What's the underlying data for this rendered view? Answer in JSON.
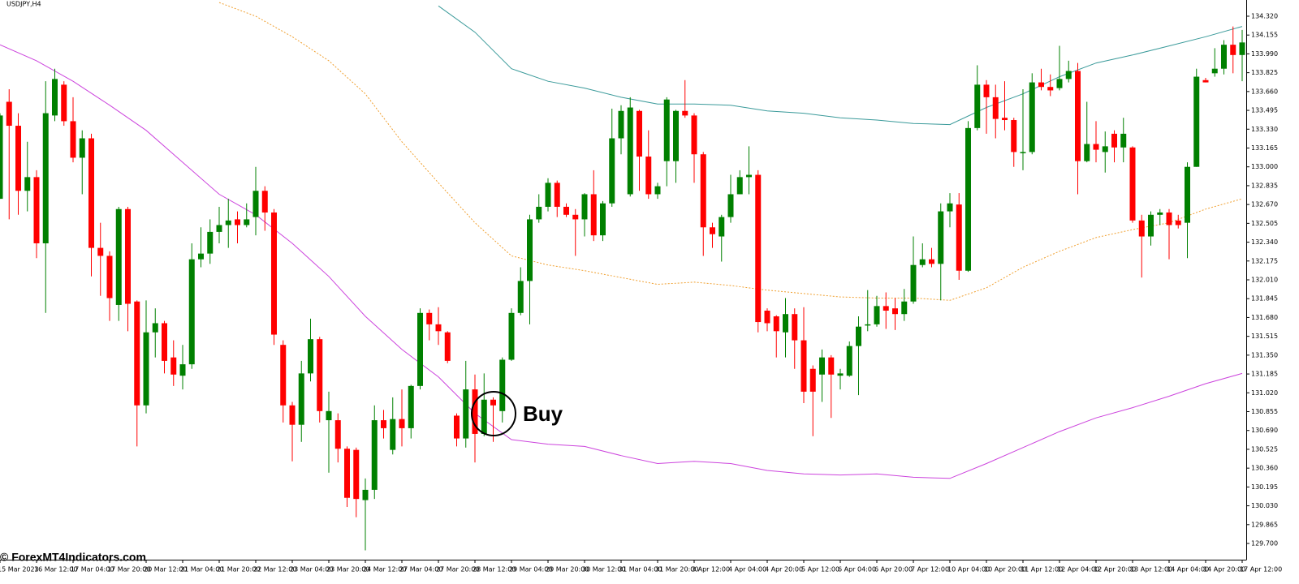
{
  "chart_data": {
    "type": "candlestick",
    "title": "USDJPY,H4",
    "watermark": "© ForexMT4Indicators.com",
    "annotation": "Buy",
    "up_color": "#008000",
    "down_color": "#ff0000",
    "ylim": [
      129.558,
      134.462
    ],
    "yticks": [
      {
        "value": 134.32,
        "label": "134.320"
      },
      134.155,
      {
        "value": 133.99,
        "label": "133.990"
      },
      133.825,
      {
        "value": 133.66,
        "label": "133.660"
      },
      133.495,
      {
        "value": 133.33,
        "label": "133.330"
      },
      133.165,
      {
        "value": 133.0,
        "label": "133.000"
      },
      132.835,
      {
        "value": 132.67,
        "label": "132.670"
      },
      132.505,
      {
        "value": 132.34,
        "label": "132.340"
      },
      132.175,
      {
        "value": 132.01,
        "label": "132.010"
      },
      131.845,
      {
        "value": 131.68,
        "label": "131.680"
      },
      131.515,
      {
        "value": 131.35,
        "label": "131.350"
      },
      131.185,
      {
        "value": 131.02,
        "label": "131.020"
      },
      130.855,
      {
        "value": 130.69,
        "label": "130.690"
      },
      130.525,
      {
        "value": 130.36,
        "label": "130.360"
      },
      130.195,
      {
        "value": 130.03,
        "label": "130.030"
      },
      129.865,
      {
        "value": 129.7,
        "label": "129.700"
      }
    ],
    "xticks": [
      "15 Mar 2023",
      "16 Mar 12:00",
      "17 Mar 04:00",
      "17 Mar 20:00",
      "20 Mar 12:00",
      "21 Mar 04:00",
      "21 Mar 20:00",
      "22 Mar 12:00",
      "23 Mar 04:00",
      "23 Mar 20:00",
      "24 Mar 12:00",
      "27 Mar 04:00",
      "27 Mar 20:00",
      "28 Mar 12:00",
      "29 Mar 04:00",
      "29 Mar 20:00",
      "30 Mar 12:00",
      "31 Mar 04:00",
      "31 Mar 20:00",
      "3 Apr 12:00",
      "4 Apr 04:00",
      "4 Apr 20:00",
      "5 Apr 12:00",
      "6 Apr 04:00",
      "6 Apr 20:00",
      "7 Apr 12:00",
      "10 Apr 04:00",
      "10 Apr 20:00",
      "11 Apr 12:00",
      "12 Apr 04:00",
      "12 Apr 20:00",
      "13 Apr 12:00",
      "14 Apr 04:00",
      "14 Apr 20:00",
      "17 Apr 12:00"
    ],
    "open": [
      132.72,
      133.57,
      133.36,
      132.79,
      132.91,
      132.33,
      133.45,
      133.72,
      133.4,
      133.08,
      133.25,
      132.29,
      132.22,
      131.79,
      132.63,
      131.82,
      130.91,
      131.55,
      131.63,
      131.33,
      131.17,
      131.27,
      132.19,
      132.24,
      132.43,
      132.49,
      132.54,
      132.49,
      132.56,
      132.79,
      132.6,
      131.44,
      130.91,
      130.74,
      131.19,
      131.49,
      130.78,
      130.78,
      130.53,
      130.52,
      130.08,
      130.17,
      130.78,
      130.52,
      130.79,
      130.71,
      131.08,
      131.72,
      131.62,
      131.55,
      130.82,
      130.62,
      131.05,
      130.66,
      130.96,
      130.86,
      131.31,
      131.72,
      132.0,
      132.54,
      132.65,
      132.86,
      132.65,
      132.58,
      132.54,
      132.76,
      132.4,
      132.68,
      133.25,
      132.76,
      133.49,
      133.09,
      132.76,
      133.05,
      133.05,
      133.49,
      133.45,
      133.11,
      132.47,
      132.39,
      132.56,
      132.76,
      132.91,
      132.93,
      131.74,
      131.69,
      131.55,
      131.71,
      131.48,
      131.23,
      131.18,
      131.33,
      131.17,
      131.17,
      131.43,
      131.61,
      131.62,
      131.78,
      131.76,
      131.71,
      131.82,
      132.14,
      132.19,
      132.15,
      132.61,
      132.67,
      132.09,
      133.34,
      133.72,
      133.61,
      133.43,
      133.41,
      133.12,
      133.13,
      133.74,
      133.7,
      133.69,
      133.77,
      133.84,
      133.05,
      133.2,
      133.13,
      133.29,
      133.17,
      133.17,
      132.53,
      132.39,
      132.58,
      132.6,
      132.53,
      132.51,
      133.0,
      133.76,
      133.82,
      133.86,
      134.07,
      133.98
    ],
    "high": [
      133.47,
      133.68,
      133.47,
      133.22,
      132.97,
      133.75,
      133.86,
      133.75,
      133.61,
      133.32,
      133.29,
      132.51,
      132.26,
      132.65,
      132.65,
      131.83,
      131.83,
      131.76,
      131.65,
      131.48,
      131.44,
      132.33,
      132.47,
      132.54,
      132.65,
      132.72,
      132.61,
      132.68,
      133.0,
      132.83,
      132.63,
      131.48,
      130.94,
      131.3,
      131.67,
      131.51,
      131.03,
      130.84,
      130.55,
      130.54,
      130.27,
      130.91,
      130.87,
      130.98,
      131.05,
      131.09,
      131.76,
      131.75,
      131.77,
      131.56,
      130.84,
      131.3,
      131.18,
      131.19,
      130.98,
      131.33,
      131.76,
      132.12,
      132.58,
      132.76,
      132.9,
      132.88,
      132.68,
      132.63,
      132.77,
      132.97,
      132.7,
      133.51,
      133.54,
      133.61,
      133.5,
      133.32,
      132.86,
      133.61,
      133.5,
      133.76,
      133.47,
      133.13,
      132.51,
      132.58,
      132.93,
      132.97,
      133.18,
      132.97,
      131.76,
      131.7,
      131.85,
      131.76,
      131.77,
      131.26,
      131.4,
      131.35,
      131.23,
      131.47,
      131.69,
      131.92,
      131.87,
      131.9,
      131.85,
      131.93,
      132.39,
      132.33,
      132.29,
      132.68,
      132.77,
      132.77,
      133.4,
      133.89,
      133.76,
      133.72,
      133.75,
      133.43,
      133.68,
      133.82,
      133.86,
      133.81,
      134.06,
      133.93,
      133.91,
      133.57,
      133.4,
      133.31,
      133.32,
      133.43,
      133.18,
      132.58,
      132.61,
      132.63,
      132.63,
      132.58,
      133.04,
      133.86,
      133.78,
      134.04,
      134.11,
      134.23,
      134.2
    ],
    "low": [
      132.72,
      132.54,
      132.58,
      132.61,
      132.2,
      131.72,
      133.4,
      133.36,
      133.04,
      132.76,
      132.04,
      131.87,
      131.65,
      131.65,
      131.56,
      130.55,
      130.84,
      131.33,
      131.19,
      131.08,
      131.05,
      131.23,
      132.12,
      132.15,
      132.33,
      132.29,
      132.33,
      132.47,
      132.4,
      132.44,
      131.44,
      130.76,
      130.42,
      130.59,
      131.12,
      130.76,
      130.32,
      130.41,
      130.02,
      129.93,
      129.64,
      130.09,
      130.62,
      130.48,
      130.55,
      130.62,
      131.05,
      131.48,
      131.44,
      131.28,
      130.55,
      130.54,
      130.41,
      130.64,
      130.59,
      130.76,
      131.3,
      131.7,
      131.62,
      132.51,
      132.61,
      132.56,
      132.56,
      132.22,
      132.39,
      132.35,
      132.35,
      132.65,
      133.11,
      132.74,
      132.79,
      132.72,
      132.72,
      132.83,
      132.86,
      133.43,
      132.86,
      132.22,
      132.29,
      132.17,
      132.51,
      132.76,
      132.76,
      131.55,
      131.56,
      131.33,
      131.33,
      131.23,
      130.93,
      130.64,
      130.94,
      130.8,
      131.05,
      131.16,
      131.0,
      131.56,
      131.6,
      131.58,
      131.57,
      131.65,
      131.8,
      132.12,
      132.12,
      131.83,
      132.47,
      132.01,
      132.08,
      133.32,
      133.29,
      133.25,
      133.32,
      133.0,
      132.97,
      133.11,
      133.67,
      133.62,
      133.67,
      133.74,
      132.76,
      133.04,
      133.04,
      132.95,
      133.04,
      133.04,
      132.51,
      132.03,
      132.31,
      132.49,
      132.19,
      132.46,
      132.2,
      133.0,
      133.74,
      133.79,
      133.81,
      133.82,
      133.75
    ],
    "close": [
      133.45,
      133.36,
      132.79,
      132.91,
      132.33,
      133.47,
      133.77,
      133.4,
      133.08,
      133.25,
      132.29,
      132.22,
      131.85,
      132.63,
      131.8,
      130.91,
      131.55,
      131.63,
      131.3,
      131.18,
      131.27,
      132.19,
      132.24,
      132.43,
      132.49,
      132.53,
      132.49,
      132.54,
      132.79,
      132.6,
      131.53,
      130.91,
      130.74,
      131.19,
      131.49,
      130.86,
      130.86,
      130.53,
      130.1,
      130.09,
      130.17,
      130.78,
      130.71,
      130.79,
      130.71,
      131.08,
      131.72,
      131.62,
      131.56,
      131.3,
      130.62,
      131.05,
      130.66,
      130.96,
      130.91,
      131.31,
      131.72,
      132.0,
      132.54,
      132.65,
      132.86,
      132.65,
      132.58,
      132.54,
      132.76,
      132.4,
      132.68,
      133.25,
      133.49,
      133.52,
      133.09,
      132.76,
      132.83,
      133.59,
      133.49,
      133.45,
      133.11,
      132.47,
      132.41,
      132.56,
      132.76,
      132.91,
      132.93,
      131.64,
      131.63,
      131.56,
      131.71,
      131.48,
      131.03,
      131.03,
      131.33,
      131.18,
      131.19,
      131.43,
      131.6,
      131.62,
      131.78,
      131.74,
      131.71,
      131.82,
      132.14,
      132.19,
      132.15,
      132.61,
      132.68,
      132.09,
      133.34,
      133.72,
      133.61,
      133.42,
      133.41,
      133.13,
      133.13,
      133.74,
      133.7,
      133.67,
      133.77,
      133.84,
      133.05,
      133.2,
      133.15,
      133.18,
      133.17,
      133.29,
      132.53,
      132.39,
      132.58,
      132.6,
      132.49,
      132.49,
      133.0,
      133.79,
      133.74,
      133.86,
      134.07,
      133.98,
      134.09
    ],
    "series": [
      {
        "color": "#cc44dd",
        "style": "solid",
        "values": [
          134.07,
          133.93,
          133.75,
          133.54,
          133.32,
          133.04,
          132.76,
          132.58,
          132.33,
          132.04,
          131.69,
          131.4,
          131.16,
          130.84,
          130.61,
          130.57,
          130.55,
          130.47,
          130.4,
          130.42,
          130.4,
          130.34,
          130.31,
          130.3,
          130.31,
          130.28,
          130.27,
          130.4,
          130.54,
          130.68,
          130.8,
          130.89,
          130.99,
          131.1,
          131.19
        ]
      },
      {
        "color": "#3a9a9a",
        "style": "solid",
        "values": [
          null,
          null,
          null,
          null,
          null,
          null,
          null,
          null,
          null,
          null,
          null,
          null,
          134.41,
          134.18,
          133.86,
          133.75,
          133.69,
          133.61,
          133.55,
          133.55,
          133.54,
          133.49,
          133.47,
          133.43,
          133.41,
          133.38,
          133.37,
          133.52,
          133.64,
          133.79,
          133.91,
          133.98,
          134.06,
          134.14,
          134.23
        ]
      },
      {
        "color": "#f0a030",
        "style": "dotted",
        "values": [
          null,
          null,
          null,
          null,
          null,
          null,
          134.44,
          134.32,
          134.14,
          133.93,
          133.64,
          133.22,
          132.86,
          132.51,
          132.22,
          132.14,
          132.09,
          132.03,
          131.97,
          131.99,
          131.96,
          131.92,
          131.89,
          131.86,
          131.85,
          131.85,
          131.83,
          131.94,
          132.12,
          132.26,
          132.38,
          132.45,
          132.51,
          132.63,
          132.72
        ]
      }
    ]
  }
}
